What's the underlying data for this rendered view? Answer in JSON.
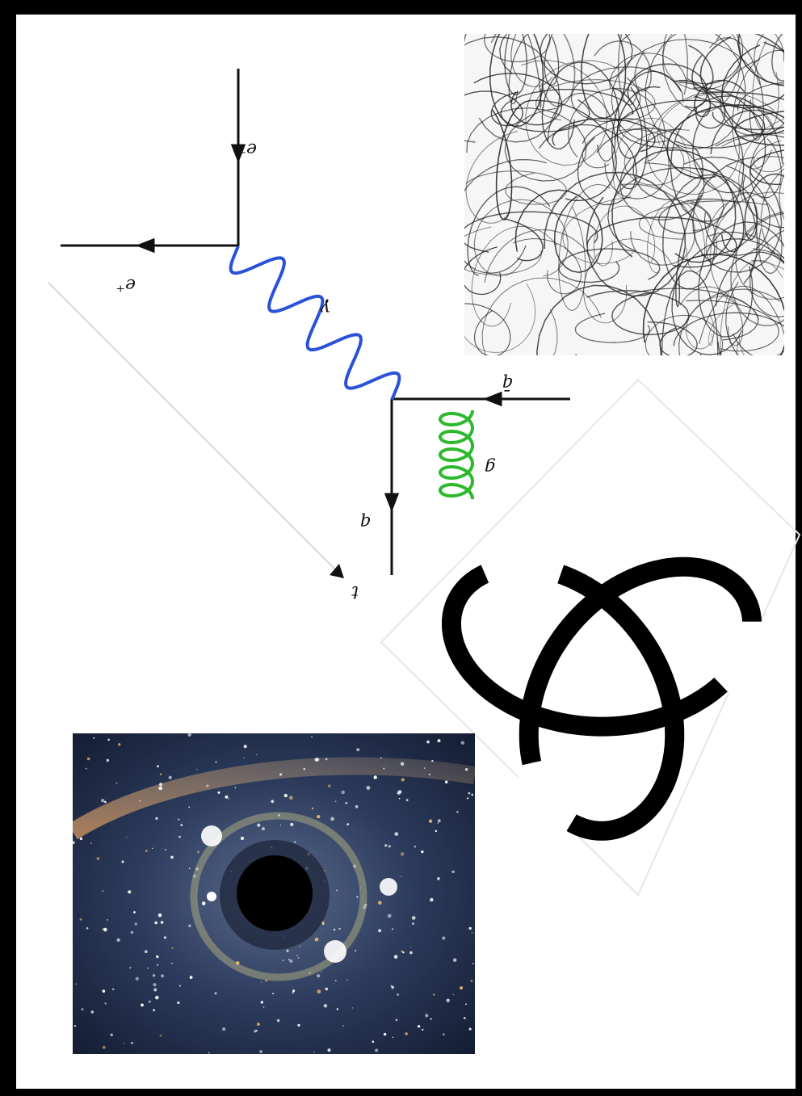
{
  "feynman": {
    "labels": {
      "electron_in": "e⁻",
      "positron": "e⁺",
      "photon": "γ",
      "antiquark": "q̄",
      "gluon": "g",
      "quark": "q",
      "time": "t"
    }
  }
}
